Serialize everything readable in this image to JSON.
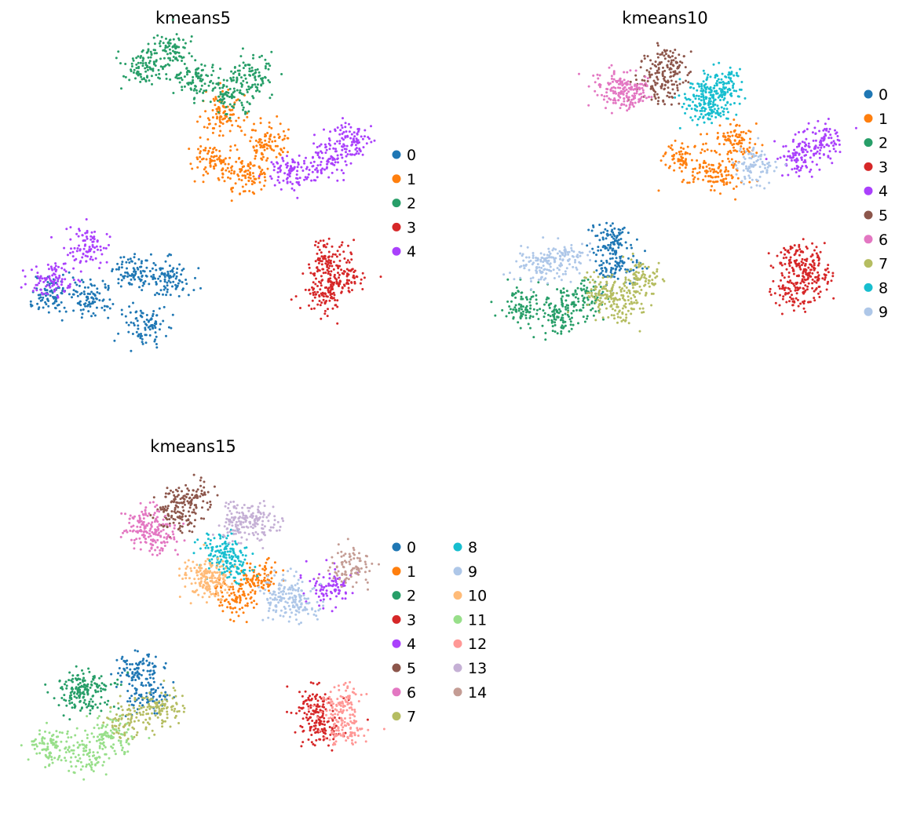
{
  "palette": [
    "#1f77b4",
    "#ff7f0e",
    "#279e68",
    "#d62728",
    "#aa40fc",
    "#8c564b",
    "#e377c2",
    "#b5bd61",
    "#17becf",
    "#aec7e8",
    "#ffbb78",
    "#98df8a",
    "#ff9896",
    "#c5b0d5",
    "#c49c94"
  ],
  "chart_data": [
    {
      "type": "scatter",
      "title": "kmeans5",
      "legend_placement": "right",
      "grid": false,
      "axes_visible": false,
      "legend": [
        "0",
        "1",
        "2",
        "3",
        "4"
      ],
      "clusters": [
        {
          "label": "0",
          "centers": [
            [
              0.08,
              0.22
            ],
            [
              0.2,
              0.2
            ],
            [
              0.32,
              0.28
            ],
            [
              0.35,
              0.12
            ],
            [
              0.42,
              0.26
            ]
          ]
        },
        {
          "label": "1",
          "centers": [
            [
              0.55,
              0.62
            ],
            [
              0.65,
              0.58
            ],
            [
              0.7,
              0.68
            ],
            [
              0.58,
              0.76
            ]
          ]
        },
        {
          "label": "2",
          "centers": [
            [
              0.35,
              0.9
            ],
            [
              0.43,
              0.95
            ],
            [
              0.5,
              0.87
            ],
            [
              0.66,
              0.88
            ],
            [
              0.6,
              0.82
            ]
          ]
        },
        {
          "label": "3",
          "centers": [
            [
              0.87,
              0.22
            ],
            [
              0.92,
              0.27
            ],
            [
              0.88,
              0.32
            ]
          ]
        },
        {
          "label": "4",
          "centers": [
            [
              0.78,
              0.58
            ],
            [
              0.88,
              0.63
            ],
            [
              0.95,
              0.68
            ],
            [
              0.18,
              0.36
            ],
            [
              0.08,
              0.25
            ]
          ]
        }
      ]
    },
    {
      "type": "scatter",
      "title": "kmeans10",
      "legend_placement": "right",
      "grid": false,
      "axes_visible": false,
      "legend": [
        "0",
        "1",
        "2",
        "3",
        "4",
        "5",
        "6",
        "7",
        "8",
        "9"
      ],
      "clusters": [
        {
          "label": "0",
          "centers": [
            [
              0.33,
              0.38
            ],
            [
              0.36,
              0.3
            ]
          ]
        },
        {
          "label": "1",
          "centers": [
            [
              0.55,
              0.62
            ],
            [
              0.65,
              0.58
            ],
            [
              0.7,
              0.68
            ]
          ]
        },
        {
          "label": "2",
          "centers": [
            [
              0.08,
              0.18
            ],
            [
              0.18,
              0.15
            ],
            [
              0.25,
              0.2
            ]
          ]
        },
        {
          "label": "3",
          "centers": [
            [
              0.87,
              0.22
            ],
            [
              0.92,
              0.27
            ],
            [
              0.88,
              0.32
            ]
          ]
        },
        {
          "label": "4",
          "centers": [
            [
              0.88,
              0.63
            ],
            [
              0.95,
              0.68
            ]
          ]
        },
        {
          "label": "5",
          "centers": [
            [
              0.5,
              0.92
            ],
            [
              0.47,
              0.85
            ]
          ]
        },
        {
          "label": "6",
          "centers": [
            [
              0.35,
              0.84
            ],
            [
              0.4,
              0.82
            ]
          ]
        },
        {
          "label": "7",
          "centers": [
            [
              0.32,
              0.22
            ],
            [
              0.42,
              0.26
            ],
            [
              0.37,
              0.18
            ]
          ]
        },
        {
          "label": "8",
          "centers": [
            [
              0.6,
              0.82
            ],
            [
              0.62,
              0.78
            ],
            [
              0.66,
              0.85
            ]
          ]
        },
        {
          "label": "9",
          "centers": [
            [
              0.2,
              0.32
            ],
            [
              0.76,
              0.6
            ],
            [
              0.12,
              0.3
            ]
          ]
        }
      ]
    },
    {
      "type": "scatter",
      "title": "kmeans15",
      "legend_placement": "right",
      "grid": false,
      "axes_visible": false,
      "legend": [
        "0",
        "1",
        "2",
        "3",
        "4",
        "5",
        "6",
        "7",
        "8",
        "9",
        "10",
        "11",
        "12",
        "13",
        "14"
      ],
      "clusters": [
        {
          "label": "0",
          "centers": [
            [
              0.33,
              0.38
            ],
            [
              0.36,
              0.3
            ]
          ]
        },
        {
          "label": "1",
          "centers": [
            [
              0.62,
              0.6
            ],
            [
              0.68,
              0.66
            ]
          ]
        },
        {
          "label": "2",
          "centers": [
            [
              0.15,
              0.3
            ],
            [
              0.2,
              0.32
            ]
          ]
        },
        {
          "label": "3",
          "centers": [
            [
              0.84,
              0.27
            ],
            [
              0.86,
              0.2
            ]
          ]
        },
        {
          "label": "4",
          "centers": [
            [
              0.89,
              0.63
            ]
          ]
        },
        {
          "label": "5",
          "centers": [
            [
              0.48,
              0.9
            ],
            [
              0.44,
              0.85
            ]
          ]
        },
        {
          "label": "6",
          "centers": [
            [
              0.35,
              0.82
            ],
            [
              0.39,
              0.78
            ]
          ]
        },
        {
          "label": "7",
          "centers": [
            [
              0.3,
              0.22
            ],
            [
              0.4,
              0.26
            ]
          ]
        },
        {
          "label": "8",
          "centers": [
            [
              0.57,
              0.74
            ],
            [
              0.6,
              0.7
            ]
          ]
        },
        {
          "label": "9",
          "centers": [
            [
              0.74,
              0.61
            ],
            [
              0.8,
              0.58
            ]
          ]
        },
        {
          "label": "10",
          "centers": [
            [
              0.55,
              0.64
            ],
            [
              0.52,
              0.66
            ]
          ]
        },
        {
          "label": "11",
          "centers": [
            [
              0.08,
              0.15
            ],
            [
              0.18,
              0.12
            ],
            [
              0.25,
              0.18
            ]
          ]
        },
        {
          "label": "12",
          "centers": [
            [
              0.92,
              0.28
            ],
            [
              0.93,
              0.2
            ]
          ]
        },
        {
          "label": "13",
          "centers": [
            [
              0.62,
              0.83
            ],
            [
              0.68,
              0.82
            ]
          ]
        },
        {
          "label": "14",
          "centers": [
            [
              0.95,
              0.69
            ]
          ]
        }
      ]
    }
  ]
}
